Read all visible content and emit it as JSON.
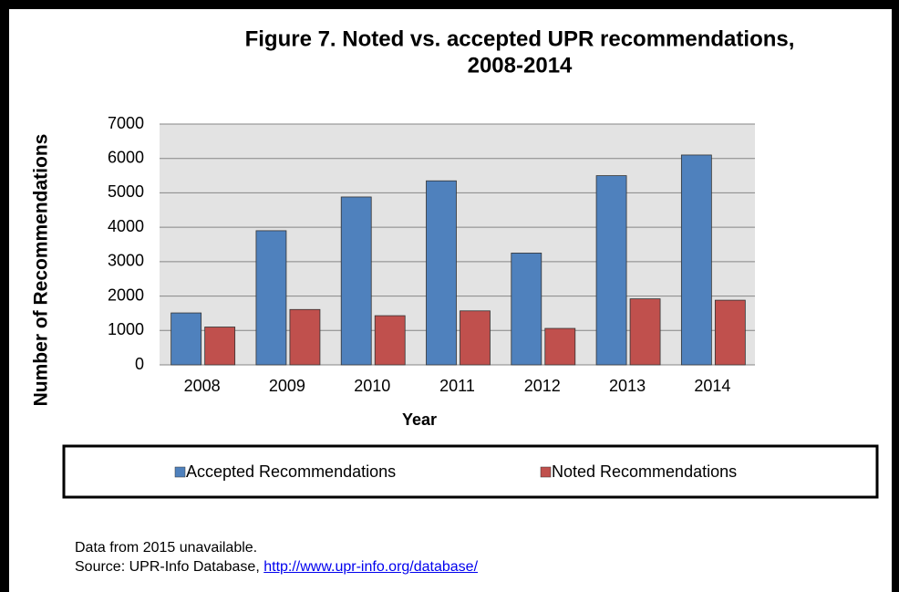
{
  "chart_data": {
    "type": "bar",
    "title": [
      "Figure 7. Noted vs. accepted UPR recommendations,",
      "2008-2014"
    ],
    "x_label": "Year",
    "y_label": "Number of Recommendations",
    "categories": [
      "2008",
      "2009",
      "2010",
      "2011",
      "2012",
      "2013",
      "2014"
    ],
    "series": [
      {
        "name": "Accepted Recommendations",
        "color": "#4f81bd",
        "values": [
          1510,
          3900,
          4880,
          5350,
          3250,
          5500,
          6100
        ]
      },
      {
        "name": "Noted Recommendations",
        "color": "#c0504d",
        "values": [
          1100,
          1610,
          1430,
          1570,
          1060,
          1920,
          1880
        ]
      }
    ],
    "ylim": [
      0,
      7000
    ],
    "yticks": [
      0,
      1000,
      2000,
      3000,
      4000,
      5000,
      6000,
      7000
    ],
    "grid": true,
    "legend": "bottom"
  },
  "notes": {
    "note": "Data from 2015 unavailable.",
    "source": "Source: UPR-Info Database,",
    "source_link": "http://www.upr-info.org/database/"
  }
}
